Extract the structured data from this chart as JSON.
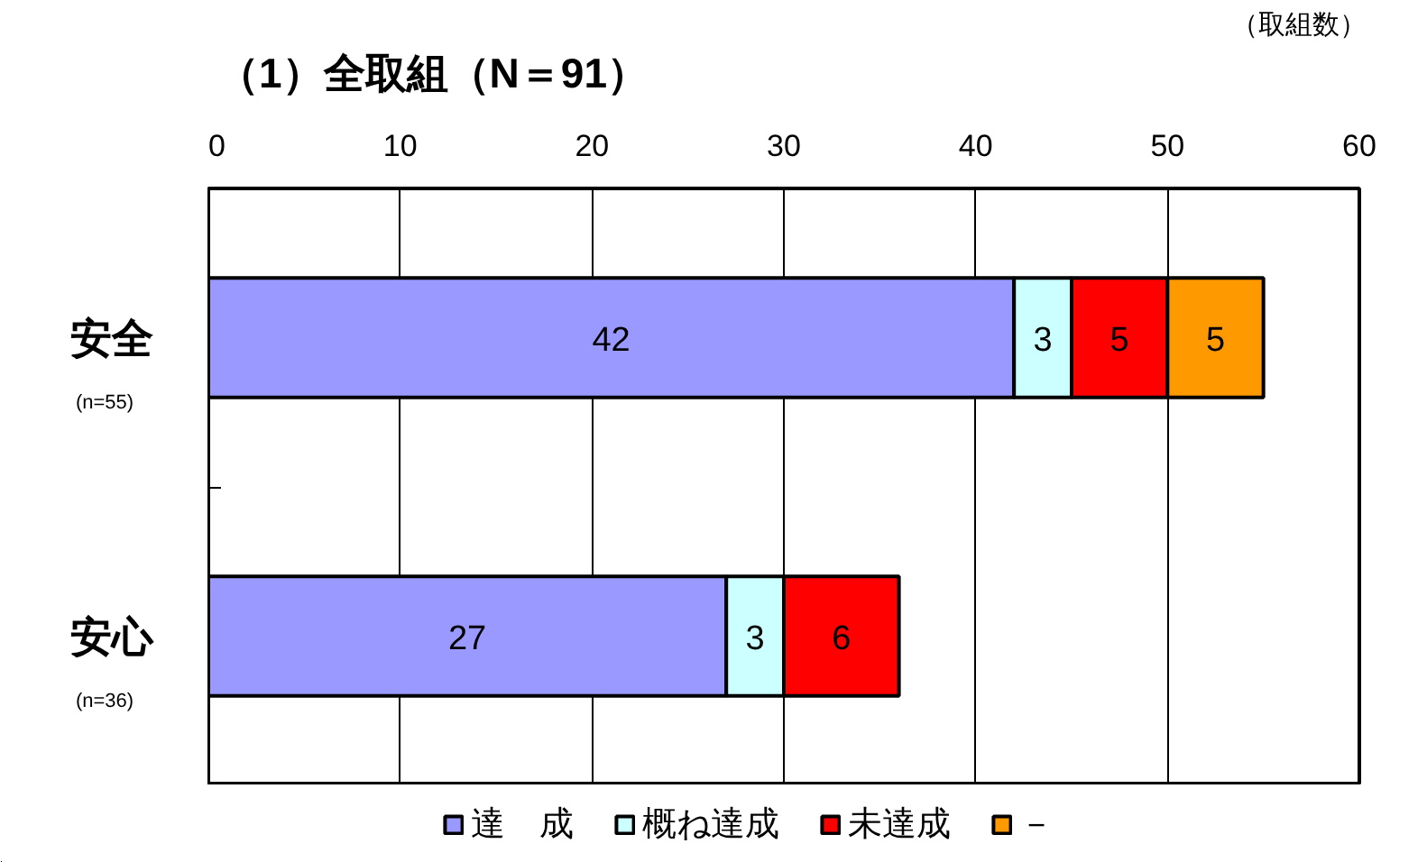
{
  "chart_data": {
    "type": "bar",
    "orientation": "horizontal",
    "stacked": true,
    "title": "（1）全取組（N＝91）",
    "annotations": [
      "（取組数）"
    ],
    "categories": [
      "安全\n(n=55)",
      "安心\n(n=36)"
    ],
    "series": [
      {
        "name": "達　成",
        "color": "#9999ff",
        "values": [
          42,
          27
        ]
      },
      {
        "name": "概ね達成",
        "color": "#ccffff",
        "values": [
          3,
          3
        ]
      },
      {
        "name": "未達成",
        "color": "#ff0000",
        "values": [
          5,
          6
        ]
      },
      {
        "name": "－",
        "color": "#ff9900",
        "values": [
          5,
          null
        ]
      }
    ],
    "xlim": [
      0,
      60
    ],
    "xticks": [
      0,
      10,
      20,
      30,
      40,
      50,
      60
    ],
    "grid": "x",
    "legend": "bottom",
    "data_labels": true
  }
}
